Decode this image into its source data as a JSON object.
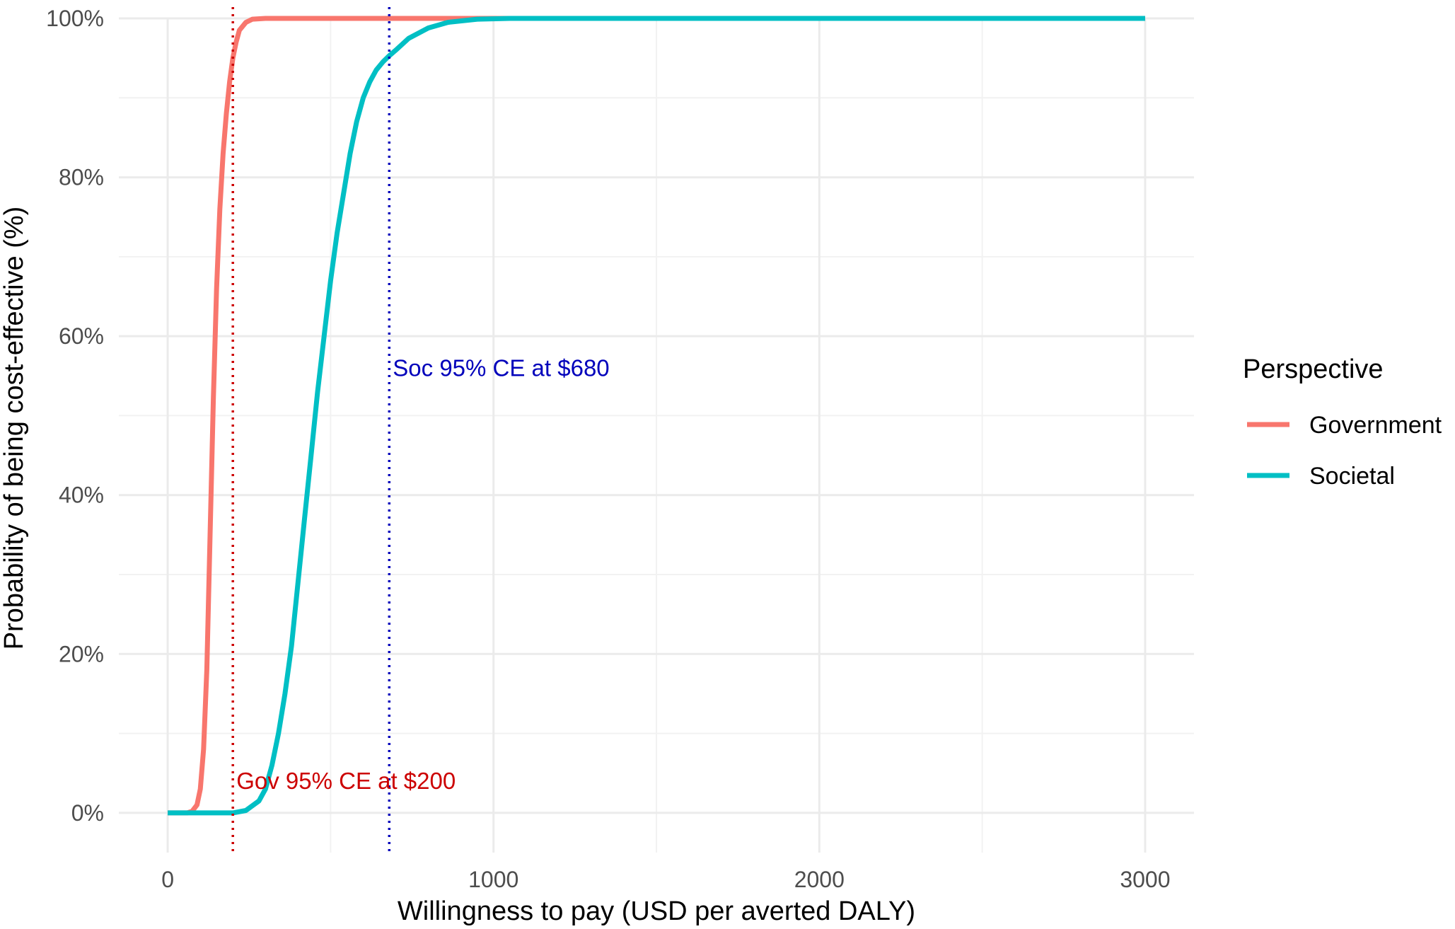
{
  "chart_data": {
    "type": "line",
    "xlabel": "Willingness to pay (USD per averted DALY)",
    "ylabel": "Probability of being cost-effective (%)",
    "xlim": [
      -150,
      3150
    ],
    "ylim": [
      -0.05,
      1.0
    ],
    "x_ticks": [
      0,
      1000,
      2000,
      3000
    ],
    "x_tick_labels": [
      "0",
      "1000",
      "2000",
      "3000"
    ],
    "x_minor_gridlines": [
      500,
      1500,
      2500
    ],
    "y_ticks": [
      0,
      0.2,
      0.4,
      0.6,
      0.8,
      1.0
    ],
    "y_tick_labels": [
      "0%",
      "20%",
      "40%",
      "60%",
      "80%",
      "100%"
    ],
    "y_minor_gridlines": [
      0.1,
      0.3,
      0.5,
      0.7,
      0.9
    ],
    "grid": true,
    "legend": {
      "title": "Perspective",
      "placement": "right"
    },
    "series": [
      {
        "name": "Government",
        "color": "#F8766D",
        "points": [
          [
            0,
            0
          ],
          [
            60,
            0
          ],
          [
            75,
            0.002
          ],
          [
            90,
            0.01
          ],
          [
            100,
            0.03
          ],
          [
            110,
            0.08
          ],
          [
            120,
            0.18
          ],
          [
            130,
            0.35
          ],
          [
            140,
            0.52
          ],
          [
            150,
            0.66
          ],
          [
            160,
            0.76
          ],
          [
            170,
            0.83
          ],
          [
            180,
            0.88
          ],
          [
            190,
            0.92
          ],
          [
            200,
            0.95
          ],
          [
            210,
            0.97
          ],
          [
            220,
            0.985
          ],
          [
            240,
            0.995
          ],
          [
            260,
            0.999
          ],
          [
            300,
            1.0
          ],
          [
            3000,
            1.0
          ]
        ]
      },
      {
        "name": "Societal",
        "color": "#00BFC4",
        "points": [
          [
            0,
            0
          ],
          [
            200,
            0
          ],
          [
            240,
            0.003
          ],
          [
            280,
            0.015
          ],
          [
            300,
            0.03
          ],
          [
            320,
            0.06
          ],
          [
            340,
            0.1
          ],
          [
            360,
            0.15
          ],
          [
            380,
            0.21
          ],
          [
            400,
            0.29
          ],
          [
            420,
            0.37
          ],
          [
            440,
            0.45
          ],
          [
            460,
            0.53
          ],
          [
            480,
            0.6
          ],
          [
            500,
            0.67
          ],
          [
            520,
            0.73
          ],
          [
            540,
            0.78
          ],
          [
            560,
            0.83
          ],
          [
            580,
            0.87
          ],
          [
            600,
            0.9
          ],
          [
            620,
            0.92
          ],
          [
            640,
            0.935
          ],
          [
            660,
            0.945
          ],
          [
            680,
            0.953
          ],
          [
            700,
            0.96
          ],
          [
            740,
            0.975
          ],
          [
            800,
            0.988
          ],
          [
            860,
            0.995
          ],
          [
            950,
            0.999
          ],
          [
            1050,
            1.0
          ],
          [
            3000,
            1.0
          ]
        ]
      }
    ],
    "vlines": [
      {
        "x": 200,
        "color": "#CC0000",
        "style": "dotted"
      },
      {
        "x": 680,
        "color": "#0000BB",
        "style": "dotted"
      }
    ],
    "annotations": [
      {
        "text": "Gov 95% CE at $200",
        "x": 200,
        "y": 0.03,
        "color": "#CC0000"
      },
      {
        "text": "Soc 95% CE at $680",
        "x": 680,
        "y": 0.55,
        "color": "#0000BB"
      }
    ]
  }
}
